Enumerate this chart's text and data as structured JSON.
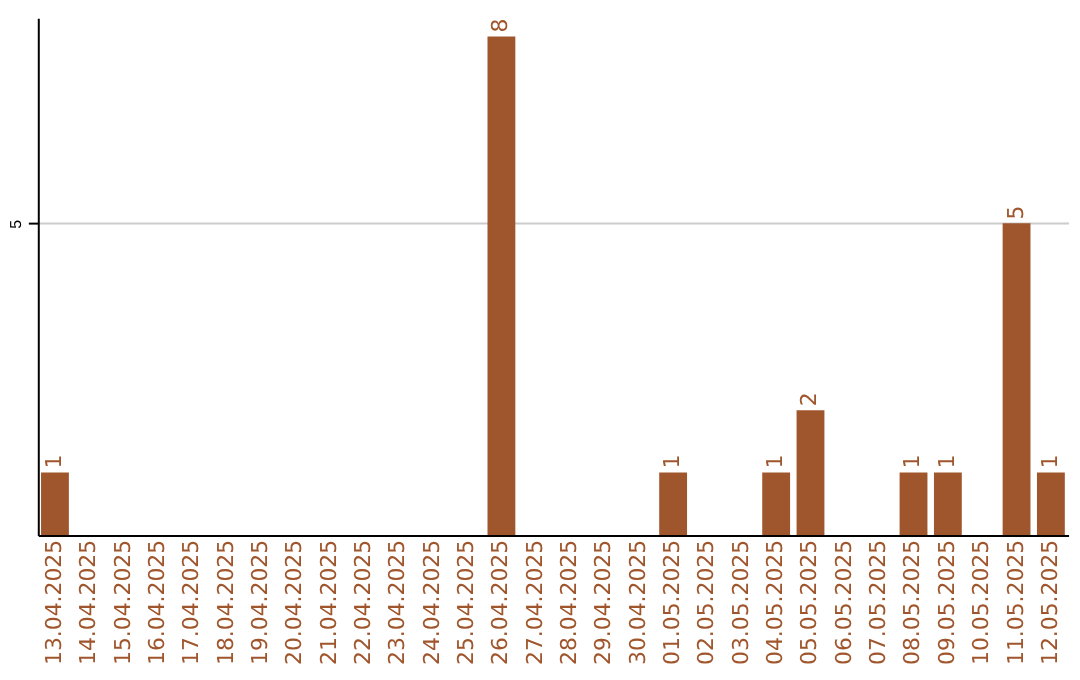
{
  "chart_data": {
    "type": "bar",
    "categories": [
      "13.04.2025",
      "14.04.2025",
      "15.04.2025",
      "16.04.2025",
      "17.04.2025",
      "18.04.2025",
      "19.04.2025",
      "20.04.2025",
      "21.04.2025",
      "22.04.2025",
      "23.04.2025",
      "24.04.2025",
      "25.04.2025",
      "26.04.2025",
      "27.04.2025",
      "28.04.2025",
      "29.04.2025",
      "30.04.2025",
      "01.05.2025",
      "02.05.2025",
      "03.05.2025",
      "04.05.2025",
      "05.05.2025",
      "06.05.2025",
      "07.05.2025",
      "08.05.2025",
      "09.05.2025",
      "10.05.2025",
      "11.05.2025",
      "12.05.2025"
    ],
    "values": [
      1,
      0,
      0,
      0,
      0,
      0,
      0,
      0,
      0,
      0,
      0,
      0,
      0,
      8,
      0,
      0,
      0,
      0,
      1,
      0,
      0,
      1,
      2,
      0,
      0,
      1,
      1,
      0,
      5,
      1
    ],
    "value_labels": [
      "1",
      null,
      null,
      null,
      null,
      null,
      null,
      null,
      null,
      null,
      null,
      null,
      null,
      "8",
      null,
      null,
      null,
      null,
      "1",
      null,
      null,
      "1",
      "2",
      null,
      null,
      "1",
      "1",
      null,
      "5",
      "1"
    ],
    "color": "#a0562c",
    "ylim": [
      0,
      8.3
    ],
    "yticks": [
      5
    ],
    "grid": "y"
  }
}
